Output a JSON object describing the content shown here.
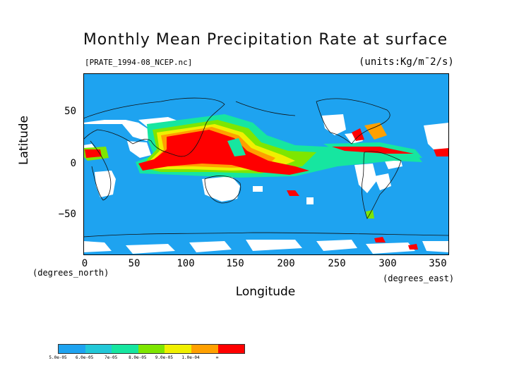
{
  "title": "Monthly Mean Precipitation Rate at surface",
  "subtitle": "[PRATE_1994-08_NCEP.nc]",
  "units": "(units:Kg/m¯2/s)",
  "x_axis": {
    "label": "Longitude",
    "note": "(degrees_east)",
    "ticks": [
      "0",
      "50",
      "100",
      "150",
      "200",
      "250",
      "300",
      "350"
    ]
  },
  "y_axis": {
    "label": "Latitude",
    "note": "(degrees_north)",
    "ticks": [
      "50",
      "0",
      "−50"
    ]
  },
  "colors": {
    "ocean_background": "#1ea3f0",
    "no_data": "#ffffff",
    "heavy": "#ff0000"
  },
  "colorbar": {
    "colors": [
      "#1ea3f0",
      "#22c8d8",
      "#16e6a0",
      "#7ee600",
      "#f0f000",
      "#ffa000",
      "#ff0000"
    ],
    "labels": [
      "5.0e-05",
      "6.0e-05",
      "7e-05",
      "8.0e-05",
      "9.0e-05",
      "1.0e-04",
      "∞"
    ]
  },
  "chart_data": {
    "type": "heatmap",
    "title": "Monthly Mean Precipitation Rate at surface",
    "xlabel": "Longitude",
    "ylabel": "Latitude",
    "xlim": [
      0,
      360
    ],
    "ylim": [
      -90,
      90
    ],
    "x_ticks": [
      0,
      50,
      100,
      150,
      200,
      250,
      300,
      350
    ],
    "y_ticks": [
      50,
      0,
      -50
    ],
    "colorbar_levels": [
      "5.0e-05",
      "6.0e-05",
      "7e-05",
      "8.0e-05",
      "9.0e-05",
      "1.0e-04",
      "∞"
    ]
  }
}
